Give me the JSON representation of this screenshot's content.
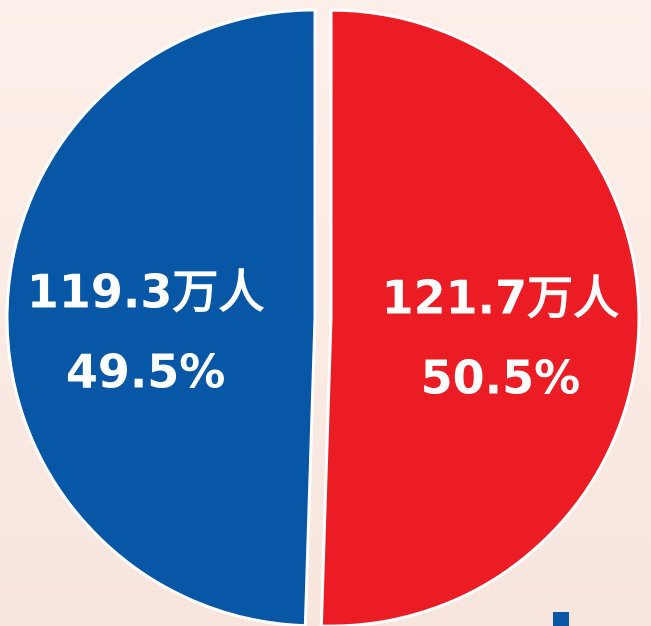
{
  "chart_data": {
    "type": "pie",
    "values": [
      49.5,
      50.5
    ],
    "value_labels": [
      "49.5%",
      "50.5%"
    ],
    "counts": [
      119.3,
      121.7
    ],
    "count_labels": [
      "119.3万人",
      "121.7万人"
    ],
    "colors": [
      "#0757a6",
      "#ec1c24"
    ]
  }
}
